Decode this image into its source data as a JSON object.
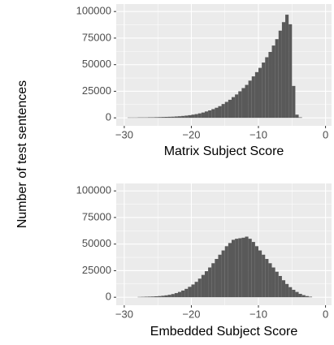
{
  "y_axis_label": "Number of test sentences",
  "chart_data": [
    {
      "type": "histogram",
      "xlabel": "Matrix Subject Score",
      "color": "#595959",
      "grid": true,
      "bins": [
        -30,
        -29.5,
        -29,
        -28.5,
        -28,
        -27.5,
        -27,
        -26.5,
        -26,
        -25.5,
        -25,
        -24.5,
        -24,
        -23.5,
        -23,
        -22.5,
        -22,
        -21.5,
        -21,
        -20.5,
        -20,
        -19.5,
        -19,
        -18.5,
        -18,
        -17.5,
        -17,
        -16.5,
        -16,
        -15.5,
        -15,
        -14.5,
        -14,
        -13.5,
        -13,
        -12.5,
        -12,
        -11.5,
        -11,
        -10.5,
        -10,
        -9.5,
        -9,
        -8.5,
        -8,
        -7.5,
        -7,
        -6.5,
        -6,
        -5.5,
        -5,
        -4.5,
        -4,
        -3.5
      ],
      "counts": [
        0,
        300,
        300,
        300,
        400,
        400,
        400,
        500,
        500,
        600,
        700,
        800,
        900,
        1000,
        1100,
        1300,
        1500,
        1800,
        2100,
        2500,
        3000,
        3500,
        4200,
        5000,
        6000,
        7000,
        8200,
        9500,
        11000,
        13000,
        15000,
        17000,
        19500,
        22000,
        25000,
        28000,
        31000,
        35000,
        39000,
        43000,
        47000,
        52000,
        57000,
        62000,
        68000,
        74000,
        82000,
        90000,
        97000,
        88000,
        30000,
        3000,
        500
      ],
      "xlim": [
        -31.2,
        0.9
      ],
      "ylim": [
        -7500,
        107000
      ],
      "xticks": [
        {
          "value": -30,
          "label": "−30"
        },
        {
          "value": -20,
          "label": "−20"
        },
        {
          "value": -10,
          "label": "−10"
        },
        0
      ],
      "yticks": [
        0,
        25000,
        50000,
        75000,
        100000
      ]
    },
    {
      "type": "histogram",
      "xlabel": "Embedded Subject Score",
      "color": "#595959",
      "grid": true,
      "bins": [
        -28,
        -27.5,
        -27,
        -26.5,
        -26,
        -25.5,
        -25,
        -24.5,
        -24,
        -23.5,
        -23,
        -22.5,
        -22,
        -21.5,
        -21,
        -20.5,
        -20,
        -19.5,
        -19,
        -18.5,
        -18,
        -17.5,
        -17,
        -16.5,
        -16,
        -15.5,
        -15,
        -14.5,
        -14,
        -13.5,
        -13,
        -12.5,
        -12,
        -11.5,
        -11,
        -10.5,
        -10,
        -9.5,
        -9,
        -8.5,
        -8,
        -7.5,
        -7,
        -6.5,
        -6,
        -5.5,
        -5,
        -4.5,
        -4,
        -3.5,
        -3,
        -2.5,
        -2
      ],
      "counts": [
        300,
        400,
        500,
        600,
        700,
        900,
        1100,
        1400,
        1800,
        2300,
        3000,
        3900,
        5000,
        6300,
        7900,
        9800,
        12000,
        14500,
        17500,
        21000,
        24500,
        28000,
        32000,
        36000,
        40000,
        44000,
        48000,
        51000,
        54000,
        55000,
        55500,
        56000,
        57000,
        55000,
        52000,
        48000,
        44000,
        40000,
        36000,
        32000,
        28000,
        24000,
        20000,
        16000,
        12500,
        9500,
        7000,
        5000,
        3200,
        2000,
        1100,
        500
      ],
      "xlim": [
        -31.2,
        0.9
      ],
      "ylim": [
        -7500,
        107000
      ],
      "xticks": [
        {
          "value": -30,
          "label": "−30"
        },
        {
          "value": -20,
          "label": "−20"
        },
        {
          "value": -10,
          "label": "−10"
        },
        0
      ],
      "yticks": [
        0,
        25000,
        50000,
        75000,
        100000
      ]
    }
  ]
}
